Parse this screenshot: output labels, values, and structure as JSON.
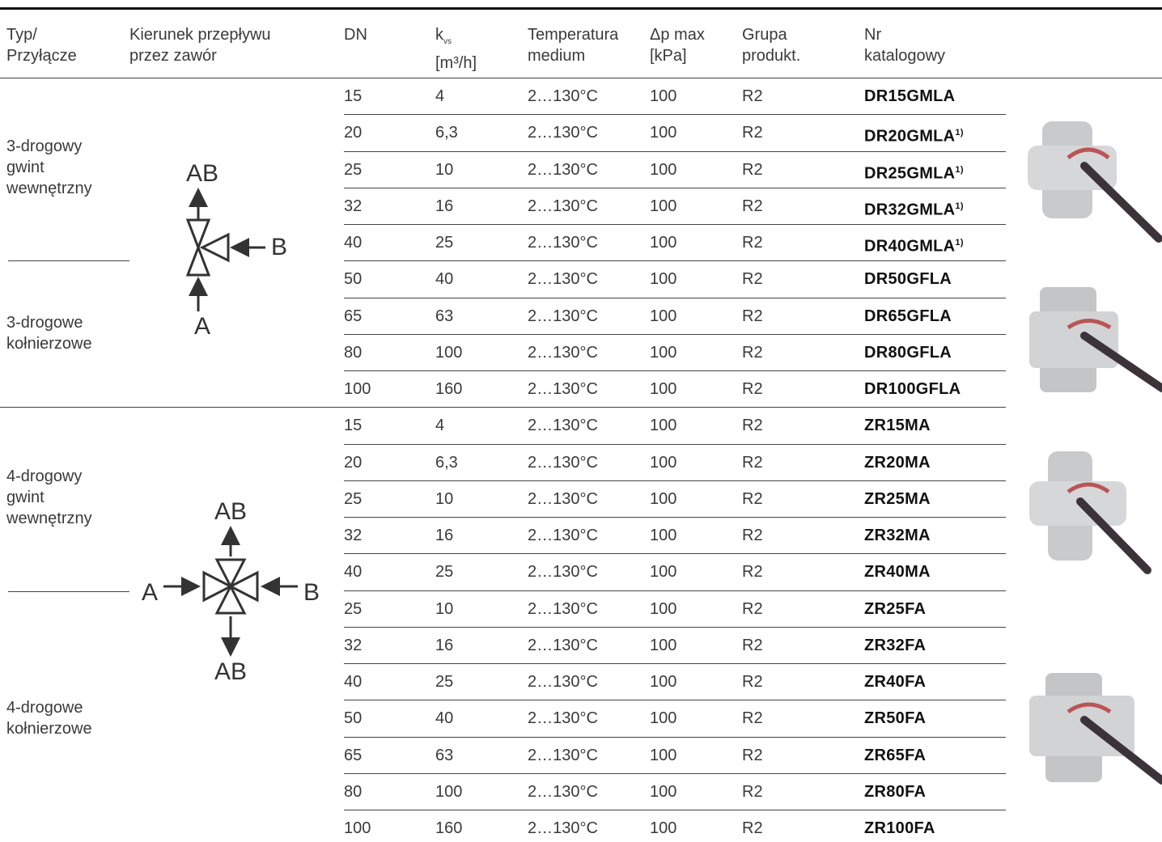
{
  "table": {
    "headers": [
      [
        "Typ/",
        "Przyłącze"
      ],
      [
        "Kierunek przepływu",
        "przez zawór"
      ],
      [
        "DN"
      ],
      [
        "k",
        "[m³/h]"
      ],
      [
        "Temperatura",
        "medium"
      ],
      [
        "Δp max",
        "[kPa]"
      ],
      [
        "Grupa",
        "produkt."
      ],
      [
        "Nr",
        "katalogowy"
      ]
    ],
    "kvs_subscript": "vs",
    "groups": [
      [
        "3-drogowy",
        "gwint",
        "wewnętrzny"
      ],
      [
        "3-drogowe",
        "kołnierzowe"
      ],
      [
        "4-drogowy",
        "gwint",
        "wewnętrzny"
      ],
      [
        "4-drogowe",
        "kołnierzowe"
      ]
    ],
    "diagrams": [
      [
        "AB",
        "B",
        "A"
      ],
      [
        "AB",
        "A",
        "B",
        "AB"
      ]
    ],
    "rows": [
      {
        "cells": [
          "15",
          "4",
          "2…130°C",
          "100",
          "R2"
        ],
        "code": "DR15GMLA"
      },
      {
        "cells": [
          "20",
          "6,3",
          "2…130°C",
          "100",
          "R2"
        ],
        "code": "DR20GMLA",
        "note": "1)"
      },
      {
        "cells": [
          "25",
          "10",
          "2…130°C",
          "100",
          "R2"
        ],
        "code": "DR25GMLA",
        "note": "1)"
      },
      {
        "cells": [
          "32",
          "16",
          "2…130°C",
          "100",
          "R2"
        ],
        "code": "DR32GMLA",
        "note": "1)"
      },
      {
        "cells": [
          "40",
          "25",
          "2…130°C",
          "100",
          "R2"
        ],
        "code": "DR40GMLA",
        "note": "1)"
      },
      {
        "cells": [
          "50",
          "40",
          "2…130°C",
          "100",
          "R2"
        ],
        "code": "DR50GFLA"
      },
      {
        "cells": [
          "65",
          "63",
          "2…130°C",
          "100",
          "R2"
        ],
        "code": "DR65GFLA"
      },
      {
        "cells": [
          "80",
          "100",
          "2…130°C",
          "100",
          "R2"
        ],
        "code": "DR80GFLA"
      },
      {
        "cells": [
          "100",
          "160",
          "2…130°C",
          "100",
          "R2"
        ],
        "code": "DR100GFLA"
      },
      {
        "cells": [
          "15",
          "4",
          "2…130°C",
          "100",
          "R2"
        ],
        "code": "ZR15MA"
      },
      {
        "cells": [
          "20",
          "6,3",
          "2…130°C",
          "100",
          "R2"
        ],
        "code": "ZR20MA"
      },
      {
        "cells": [
          "25",
          "10",
          "2…130°C",
          "100",
          "R2"
        ],
        "code": "ZR25MA"
      },
      {
        "cells": [
          "32",
          "16",
          "2…130°C",
          "100",
          "R2"
        ],
        "code": "ZR32MA"
      },
      {
        "cells": [
          "40",
          "25",
          "2…130°C",
          "100",
          "R2"
        ],
        "code": "ZR40MA"
      },
      {
        "cells": [
          "25",
          "10",
          "2…130°C",
          "100",
          "R2"
        ],
        "code": "ZR25FA"
      },
      {
        "cells": [
          "32",
          "16",
          "2…130°C",
          "100",
          "R2"
        ],
        "code": "ZR32FA"
      },
      {
        "cells": [
          "40",
          "25",
          "2…130°C",
          "100",
          "R2"
        ],
        "code": "ZR40FA"
      },
      {
        "cells": [
          "50",
          "40",
          "2…130°C",
          "100",
          "R2"
        ],
        "code": "ZR50FA"
      },
      {
        "cells": [
          "65",
          "63",
          "2…130°C",
          "100",
          "R2"
        ],
        "code": "ZR65FA"
      },
      {
        "cells": [
          "80",
          "100",
          "2…130°C",
          "100",
          "R2"
        ],
        "code": "ZR80FA"
      },
      {
        "cells": [
          "100",
          "160",
          "2…130°C",
          "100",
          "R2"
        ],
        "code": "ZR100FA"
      }
    ]
  }
}
